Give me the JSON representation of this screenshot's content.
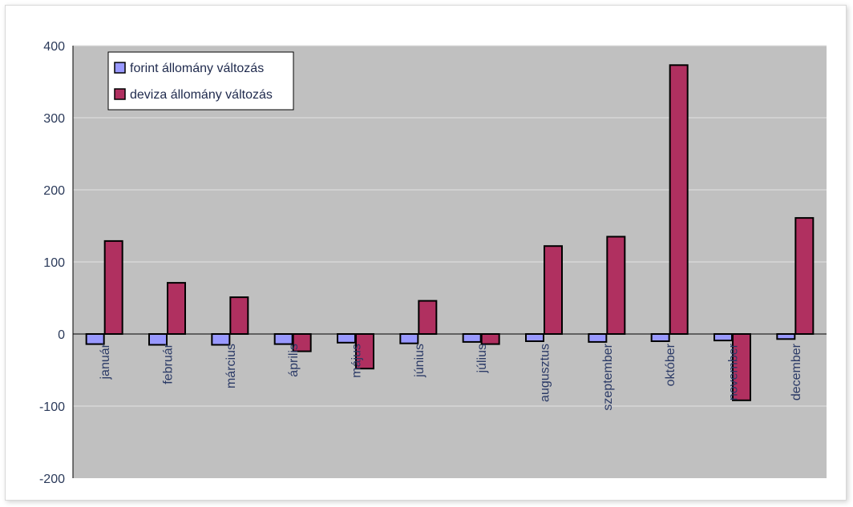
{
  "chart_data": {
    "type": "bar",
    "title": "",
    "xlabel": "",
    "ylabel": "",
    "ylim": [
      -200,
      400
    ],
    "yticks": [
      400,
      300,
      200,
      100,
      0,
      -100,
      -200
    ],
    "grid": true,
    "legend_position": "top-left",
    "categories": [
      "január",
      "február",
      "március",
      "április",
      "május",
      "június",
      "július",
      "augusztus",
      "szeptember",
      "október",
      "november",
      "december"
    ],
    "series": [
      {
        "name": "forint állomány változás",
        "color": "#9999ff",
        "values": [
          -14,
          -15,
          -15,
          -14,
          -12,
          -13,
          -11,
          -10,
          -11,
          -10,
          -9,
          -7
        ]
      },
      {
        "name": "deviza állomány változás",
        "color": "#b03060",
        "values": [
          129,
          71,
          51,
          -24,
          -48,
          46,
          -14,
          122,
          135,
          373,
          -92,
          161
        ]
      }
    ],
    "colors": {
      "plot_background": "#c0c0c0",
      "gridline": "#e2e2e2",
      "bar_outline": "#000000"
    }
  }
}
